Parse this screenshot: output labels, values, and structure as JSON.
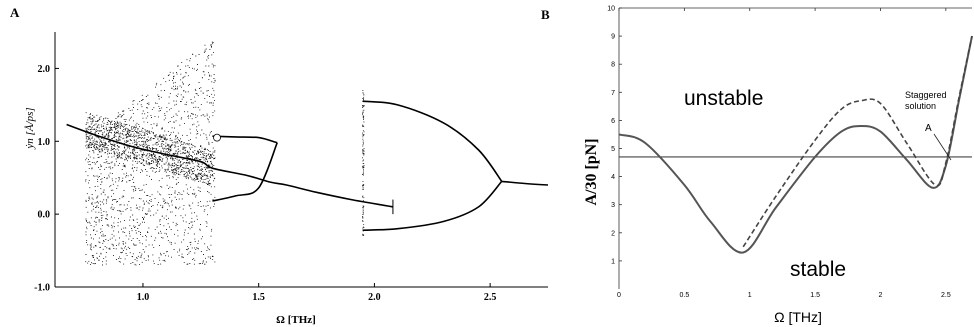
{
  "chart_data": [
    {
      "panel": "A",
      "type": "scatter",
      "description_kind": "bifurcation diagram",
      "xlabel": "Ω [THz]",
      "ylabel": "ẏn [Å/ps]",
      "xlim": [
        0.62,
        2.75
      ],
      "ylim": [
        -1.0,
        2.5
      ],
      "xticks": [
        "1.0",
        "1.5",
        "2.0",
        "2.5"
      ],
      "yticks": [
        "-1.0",
        "0.0",
        "1.0",
        "2.0"
      ],
      "series": [
        {
          "kind": "chaotic scatter",
          "x_range": [
            0.75,
            1.31
          ],
          "y_range": [
            -0.7,
            2.45
          ]
        },
        {
          "kind": "main branch",
          "x": [
            0.67,
            0.8,
            0.95,
            1.1,
            1.25,
            1.3,
            1.45,
            1.55,
            1.62,
            1.75,
            1.9,
            2.08
          ],
          "y": [
            1.23,
            1.08,
            0.93,
            0.82,
            0.72,
            0.63,
            0.53,
            0.44,
            0.4,
            0.3,
            0.2,
            0.1
          ]
        },
        {
          "kind": "upper closed branch",
          "x": [
            1.3,
            1.4,
            1.5,
            1.58
          ],
          "y": [
            1.07,
            1.06,
            1.05,
            0.98
          ]
        },
        {
          "kind": "lower closed branch",
          "x": [
            1.3,
            1.4,
            1.5,
            1.58
          ],
          "y": [
            0.18,
            0.25,
            0.36,
            0.98
          ]
        },
        {
          "kind": "right upper branch",
          "x": [
            1.95,
            2.1,
            2.3,
            2.45,
            2.55
          ],
          "y": [
            1.55,
            1.5,
            1.25,
            0.88,
            0.45
          ]
        },
        {
          "kind": "right lower branch",
          "x": [
            1.95,
            2.1,
            2.3,
            2.45,
            2.55
          ],
          "y": [
            -0.22,
            -0.2,
            -0.1,
            0.1,
            0.45
          ]
        },
        {
          "kind": "right tail",
          "x": [
            2.55,
            2.65,
            2.75
          ],
          "y": [
            0.45,
            0.42,
            0.4
          ]
        }
      ]
    },
    {
      "panel": "B",
      "type": "line",
      "xlabel": "Ω [THz]",
      "ylabel": "A/30 [pN]",
      "xlim": [
        0,
        2.7
      ],
      "ylim": [
        0,
        10
      ],
      "xticks": [
        "0",
        "0.5",
        "1",
        "1.5",
        "2",
        "2.5"
      ],
      "yticks": [
        "1",
        "2",
        "3",
        "4",
        "5",
        "6",
        "7",
        "8",
        "9",
        "10"
      ],
      "annotations": {
        "unstable": "unstable",
        "stable": "stable",
        "staggered": [
          "Staggered",
          "solution"
        ],
        "point": "A"
      },
      "series": [
        {
          "style": "solid",
          "x": [
            0,
            0.2,
            0.5,
            0.7,
            0.95,
            1.2,
            1.5,
            1.7,
            1.85,
            2.0,
            2.2,
            2.4,
            2.5,
            2.6,
            2.7
          ],
          "y": [
            5.5,
            5.2,
            3.7,
            2.4,
            1.3,
            2.9,
            4.7,
            5.6,
            5.8,
            5.6,
            4.6,
            3.6,
            4.4,
            6.7,
            9.0
          ]
        },
        {
          "style": "dashed",
          "x": [
            0.95,
            1.2,
            1.5,
            1.7,
            1.85,
            2.0,
            2.2,
            2.42,
            2.5,
            2.6,
            2.7
          ],
          "y": [
            1.5,
            3.3,
            5.3,
            6.4,
            6.7,
            6.6,
            5.2,
            3.7,
            4.5,
            6.8,
            9.0
          ]
        },
        {
          "style": "horizontal line",
          "x": [
            0,
            2.7
          ],
          "y": [
            4.7,
            4.7
          ]
        }
      ]
    }
  ]
}
